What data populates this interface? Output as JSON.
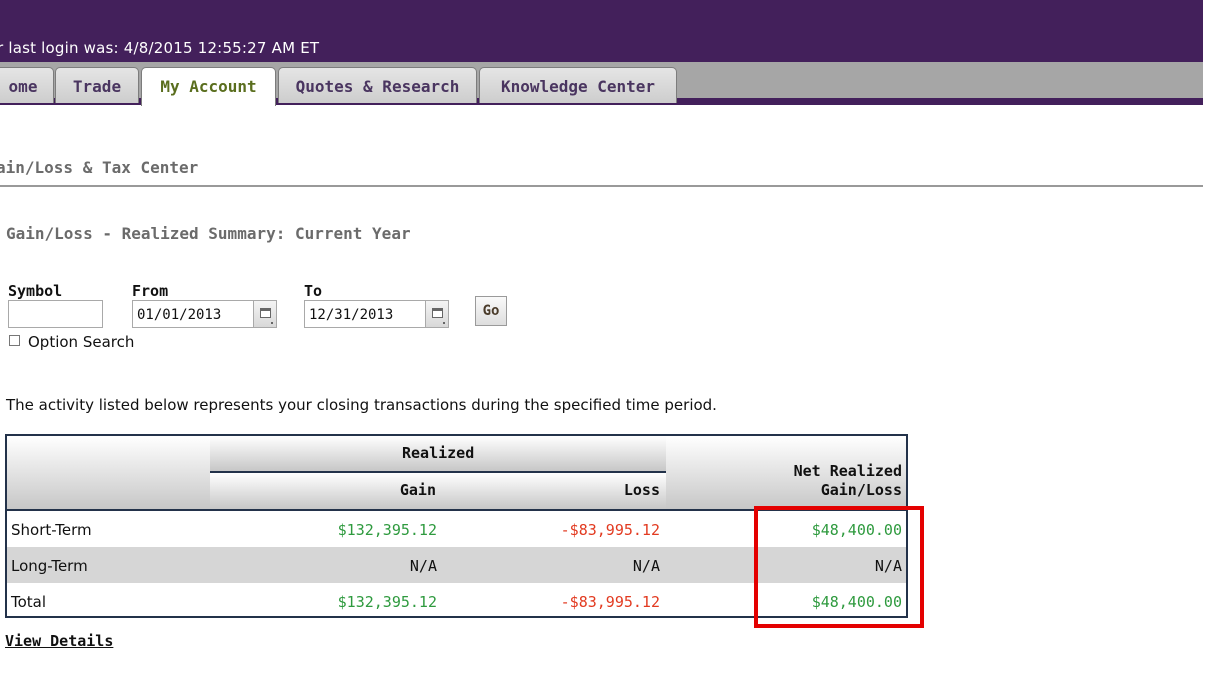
{
  "header": {
    "last_login": "r last login was: 4/8/2015 12:55:27 AM ET",
    "accent_color": "#43205b"
  },
  "tabs": [
    {
      "label": "ome",
      "active": false
    },
    {
      "label": "Trade",
      "active": false
    },
    {
      "label": "My Account",
      "active": true
    },
    {
      "label": "Quotes & Research",
      "active": false
    },
    {
      "label": "Knowledge Center",
      "active": false
    }
  ],
  "page": {
    "title": "ain/Loss & Tax Center",
    "section_title": "Gain/Loss - Realized Summary: Current Year"
  },
  "form": {
    "symbol_label": "Symbol",
    "symbol_value": "",
    "from_label": "From",
    "from_value": "01/01/2013",
    "to_label": "To",
    "to_value": "12/31/2013",
    "go_label": "Go",
    "option_search_label": "Option Search",
    "option_search_checked": false
  },
  "description": "The activity listed below represents your closing transactions during the specified time period.",
  "table": {
    "realized_header": "Realized",
    "gain_header": "Gain",
    "loss_header": "Loss",
    "net_header_line1": "Net Realized",
    "net_header_line2": "Gain/Loss",
    "rows": [
      {
        "label": "Short-Term",
        "gain": "$132,395.12",
        "loss": "-$83,995.12",
        "net": "$48,400.00"
      },
      {
        "label": "Long-Term",
        "gain": "N/A",
        "loss": "N/A",
        "net": "N/A"
      },
      {
        "label": "Total",
        "gain": "$132,395.12",
        "loss": "-$83,995.12",
        "net": "$48,400.00"
      }
    ],
    "gain_color": "#2e9a3e",
    "loss_color": "#e23a20",
    "highlight_color": "#e40000"
  },
  "view_details_label": "View Details"
}
